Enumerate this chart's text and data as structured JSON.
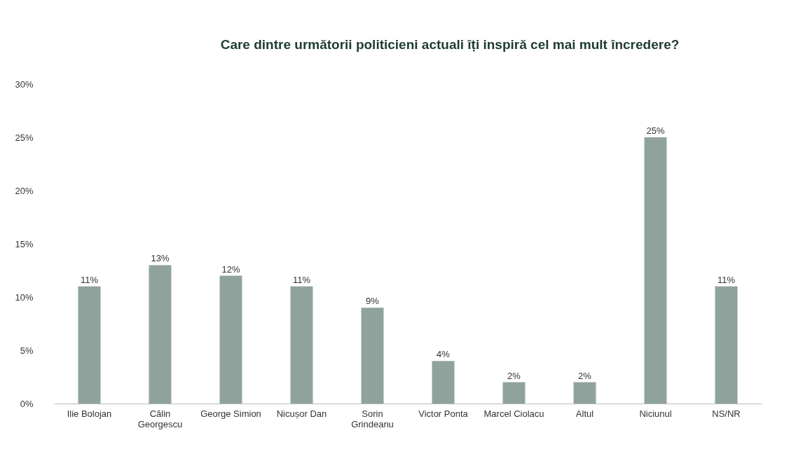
{
  "chart_data": {
    "type": "bar",
    "title": "Care dintre următorii politicieni actuali îți inspiră cel mai mult încredere?",
    "categories": [
      "Ilie Bolojan",
      "Călin Georgescu",
      "George Simion",
      "Nicușor Dan",
      "Sorin Grindeanu",
      "Victor Ponta",
      "Marcel Ciolacu",
      "Altul",
      "Niciunul",
      "NS/NR"
    ],
    "values": [
      11,
      13,
      12,
      11,
      9,
      4,
      2,
      2,
      25,
      11
    ],
    "value_labels": [
      "11%",
      "13%",
      "12%",
      "11%",
      "9%",
      "4%",
      "2%",
      "2%",
      "25%",
      "11%"
    ],
    "color": "#8fa39c",
    "ylim": [
      0,
      30
    ],
    "yticks": [
      {
        "value": 0,
        "label": "0%"
      },
      {
        "value": 5,
        "label": "5%"
      },
      {
        "value": 10,
        "label": "10%"
      },
      {
        "value": 15,
        "label": "15%"
      },
      {
        "value": 20,
        "label": "20%"
      },
      {
        "value": 25,
        "label": "25%"
      },
      {
        "value": 30,
        "label": "30%"
      }
    ],
    "grid": false
  }
}
